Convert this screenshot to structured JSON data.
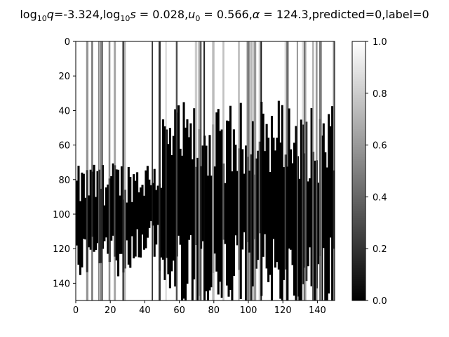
{
  "chart_data": {
    "type": "heatmap",
    "title_parts": {
      "q_label_main": "log",
      "q_label_sub": "10",
      "q_label_var": "q",
      "q_value": "=-3.324,",
      "s_label_main": "log",
      "s_label_sub": "10",
      "s_label_var": "s",
      "s_value": " = 0.028,",
      "u_label_var": "u",
      "u_label_sub": "0",
      "u_value": " = 0.566,",
      "alpha_label": "α",
      "alpha_value": " = 124.3,predicted=0,label=0"
    },
    "colormap": "gray",
    "vmin": 0.0,
    "vmax": 1.0,
    "xlim": [
      0,
      150
    ],
    "ylim": [
      150,
      0
    ],
    "x_ticks": [
      0,
      20,
      40,
      60,
      80,
      100,
      120,
      140
    ],
    "y_ticks": [
      0,
      20,
      40,
      60,
      80,
      100,
      120,
      140
    ],
    "colorbar_ticks": [
      "0.0",
      "0.2",
      "0.4",
      "0.6",
      "0.8",
      "1.0"
    ],
    "grid": false,
    "description_dark_band": {
      "center_row_start": 103,
      "center_row_end": 95,
      "center_row_mid": 92
    }
  }
}
